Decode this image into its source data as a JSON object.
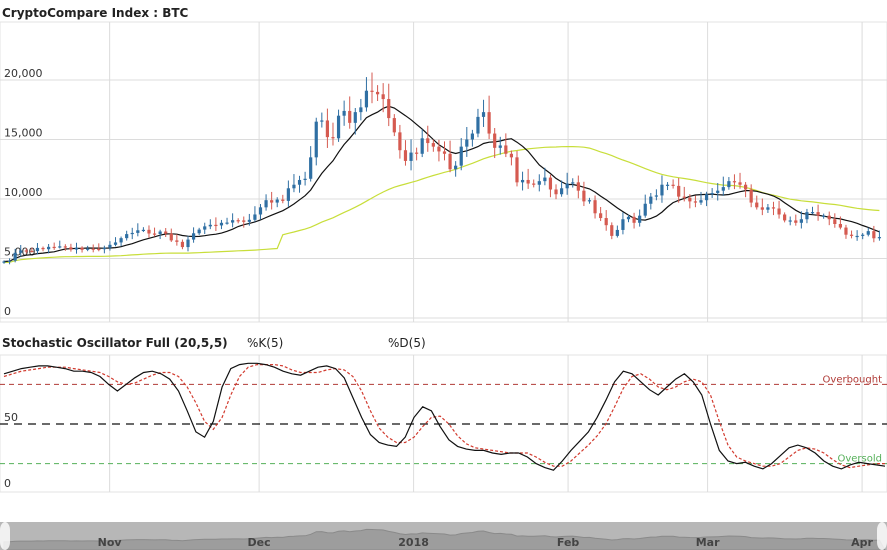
{
  "main_title": "CryptoCompare Index : BTC",
  "oscillator": {
    "title": "Stochastic Oscillator Full (20,5,5)",
    "k_label": "%K(5)",
    "d_label": "%D(5)",
    "overbought_label": "Overbought",
    "oversold_label": "Oversold"
  },
  "colors": {
    "up_candle": "#2f6fa3",
    "down_candle": "#d55a50",
    "short_ma": "#111111",
    "long_ma": "#c8de3a",
    "k_line": "#111111",
    "d_line": "#d23b2f",
    "overbought": "#b03a36",
    "oversold": "#56b05a",
    "grid": "#dcdcdc"
  },
  "chart_data": [
    {
      "type": "candlestick",
      "title": "CryptoCompare Index : BTC",
      "y_ticks": [
        "0",
        "5,000",
        "10,000",
        "15,000",
        "20,000"
      ],
      "ylim": [
        0,
        23000
      ],
      "x_tick_labels": [
        "Nov",
        "Dec",
        "2018",
        "Feb",
        "Mar",
        "Apr"
      ],
      "x_range": [
        "2017-10-10",
        "2018-04-06"
      ],
      "grid": true,
      "closes": [
        4750,
        4820,
        5480,
        5680,
        5640,
        5620,
        5890,
        5780,
        5980,
        5960,
        6020,
        5940,
        5750,
        5910,
        5730,
        5830,
        5810,
        5780,
        5900,
        6150,
        6350,
        6710,
        7050,
        7150,
        7370,
        7410,
        7100,
        7060,
        7270,
        7090,
        6520,
        6400,
        5960,
        6590,
        7120,
        7430,
        7700,
        7830,
        7780,
        8000,
        8020,
        8220,
        8200,
        8080,
        8250,
        8700,
        9300,
        9900,
        9700,
        9950,
        9840,
        10900,
        11200,
        11600,
        11700,
        13500,
        16500,
        16600,
        15200,
        15100,
        17000,
        17400,
        16400,
        17300,
        17700,
        19100,
        19000,
        18800,
        18400,
        16800,
        15600,
        14100,
        13200,
        13900,
        13800,
        15100,
        14700,
        14400,
        14000,
        13800,
        12500,
        12800,
        14400,
        15000,
        15500,
        16900,
        17300,
        15500,
        14300,
        14500,
        13800,
        13500,
        11400,
        11600,
        11300,
        11200,
        11500,
        11800,
        10800,
        10400,
        10900,
        11300,
        11400,
        10700,
        9800,
        9900,
        8800,
        8400,
        7800,
        6900,
        7400,
        8300,
        8500,
        8000,
        8600,
        9600,
        10200,
        10300,
        11200,
        11200,
        11100,
        10200,
        10100,
        9800,
        9700,
        9900,
        10400,
        10500,
        10700,
        11000,
        11500,
        11400,
        11200,
        10800,
        9700,
        9300,
        9100,
        9300,
        9200,
        8700,
        8200,
        8200,
        8000,
        8300,
        8900,
        8900,
        8600,
        8600,
        8300,
        7900,
        7600,
        7000,
        6900,
        6900,
        7000,
        7300,
        6700,
        6800
      ]
    },
    {
      "type": "line",
      "title": "Stochastic Oscillator Full (20,5,5)",
      "y_ticks": [
        "0",
        "50"
      ],
      "ylim": [
        0,
        100
      ],
      "overbought": 80,
      "oversold": 20,
      "series": [
        {
          "name": "%K(5)",
          "values": [
            88,
            90,
            92,
            93,
            94,
            94,
            93,
            92,
            90,
            90,
            89,
            86,
            80,
            75,
            80,
            85,
            89,
            90,
            88,
            84,
            75,
            60,
            44,
            40,
            52,
            78,
            92,
            95,
            96,
            96,
            95,
            93,
            90,
            88,
            87,
            90,
            93,
            94,
            92,
            85,
            70,
            55,
            42,
            36,
            34,
            33,
            40,
            55,
            63,
            60,
            48,
            38,
            33,
            31,
            30,
            30,
            28,
            27,
            28,
            28,
            25,
            20,
            17,
            15,
            22,
            30,
            37,
            44,
            55,
            68,
            82,
            90,
            88,
            82,
            76,
            72,
            78,
            84,
            88,
            82,
            72,
            50,
            30,
            22,
            20,
            21,
            18,
            16,
            20,
            26,
            32,
            34,
            32,
            28,
            22,
            18,
            16,
            19,
            21,
            20,
            19,
            18
          ]
        },
        {
          "name": "%D(5)",
          "values": [
            86,
            88,
            90,
            91,
            92,
            93,
            93,
            93,
            92,
            91,
            90,
            89,
            86,
            82,
            80,
            81,
            84,
            87,
            89,
            89,
            86,
            78,
            66,
            52,
            46,
            55,
            72,
            86,
            93,
            95,
            95,
            95,
            94,
            91,
            89,
            89,
            89,
            91,
            92,
            91,
            86,
            75,
            60,
            47,
            40,
            36,
            36,
            40,
            48,
            55,
            56,
            50,
            41,
            35,
            32,
            31,
            30,
            29,
            28,
            28,
            28,
            25,
            21,
            18,
            18,
            22,
            28,
            34,
            41,
            50,
            63,
            77,
            86,
            88,
            84,
            78,
            76,
            78,
            82,
            84,
            82,
            72,
            52,
            34,
            25,
            22,
            20,
            18,
            18,
            20,
            25,
            30,
            32,
            31,
            28,
            23,
            19,
            17,
            18,
            19,
            20,
            20
          ]
        }
      ]
    }
  ]
}
